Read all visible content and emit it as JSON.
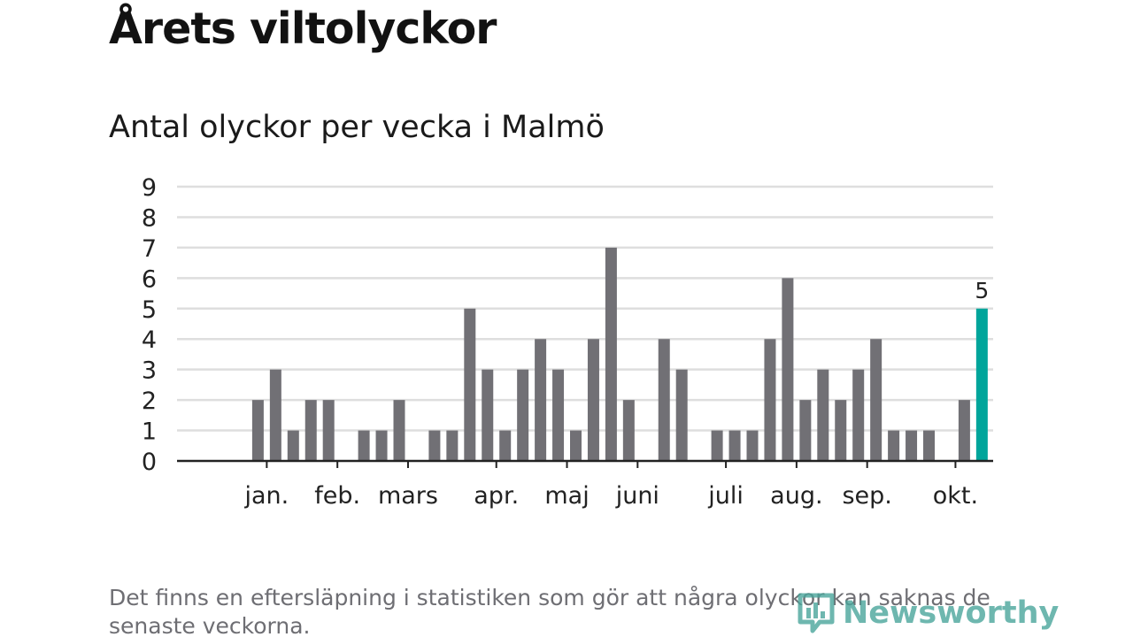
{
  "header": {
    "title": "Årets viltolyckor",
    "subtitle": "Antal olyckor per vecka i Malmö"
  },
  "footer": {
    "note": "Det finns en eftersläpning i statistiken som gör att några olyckor kan saknas de senaste veckorna.",
    "logo_text": "Newsworthy"
  },
  "colors": {
    "bar": "#717075",
    "highlight": "#00a59b",
    "grid": "#dedede",
    "axis": "#222222",
    "logo": "#4aa69c"
  },
  "chart_data": {
    "type": "bar",
    "title": "Antal olyckor per vecka i Malmö",
    "xlabel": "",
    "ylabel": "",
    "ylim": [
      0,
      9
    ],
    "yticks": [
      0,
      1,
      2,
      3,
      4,
      5,
      6,
      7,
      8,
      9
    ],
    "grid": true,
    "weeks": [
      1,
      2,
      3,
      4,
      5,
      6,
      7,
      8,
      9,
      10,
      11,
      12,
      13,
      14,
      15,
      16,
      17,
      18,
      19,
      20,
      21,
      22,
      23,
      24,
      25,
      26,
      27,
      28,
      29,
      30,
      31,
      32,
      33,
      34,
      35,
      36,
      37,
      38,
      39,
      40,
      41,
      42,
      43,
      44,
      45,
      46
    ],
    "values": [
      0,
      0,
      2,
      3,
      1,
      2,
      2,
      0,
      1,
      1,
      2,
      0,
      1,
      1,
      5,
      3,
      1,
      3,
      4,
      3,
      1,
      4,
      7,
      2,
      0,
      4,
      3,
      0,
      1,
      1,
      1,
      4,
      6,
      2,
      3,
      2,
      3,
      4,
      1,
      1,
      1,
      0,
      2,
      5,
      null,
      null
    ],
    "highlight_index": 43,
    "data_labels": [
      {
        "index": 43,
        "text": "5"
      }
    ],
    "month_ticks": [
      {
        "label": "jan.",
        "week": 3.5
      },
      {
        "label": "feb.",
        "week": 7.5
      },
      {
        "label": "mars",
        "week": 11.5
      },
      {
        "label": "apr.",
        "week": 16.5
      },
      {
        "label": "maj",
        "week": 20.5
      },
      {
        "label": "juni",
        "week": 24.5
      },
      {
        "label": "juli",
        "week": 29.5
      },
      {
        "label": "aug.",
        "week": 33.5
      },
      {
        "label": "sep.",
        "week": 37.5
      },
      {
        "label": "okt.",
        "week": 42.5
      }
    ]
  }
}
